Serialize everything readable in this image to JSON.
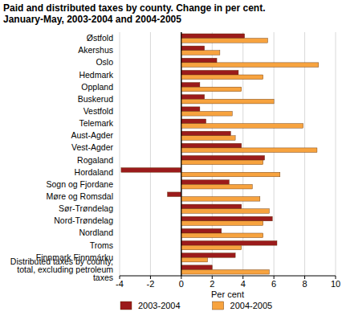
{
  "chart_data": {
    "type": "bar",
    "orientation": "horizontal",
    "title": "Paid and distributed taxes by county. Change in per cent. January-May, 2003-2004 and 2004-2005",
    "x_label": "Per cent",
    "categories": [
      "Østfold",
      "Akershus",
      "Oslo",
      "Hedmark",
      "Oppland",
      "Buskerud",
      "Vestfold",
      "Telemark",
      "Aust-Agder",
      "Vest-Agder",
      "Rogaland",
      "Hordaland",
      "Sogn og Fjordane",
      "Møre og Romsdal",
      "Sør-Trøndelag",
      "Nord-Trøndelag",
      "Nordland",
      "Troms",
      "Finnmark Finnmárku",
      "Distributed taxes by county, total, excluding petroleum taxes"
    ],
    "series": [
      {
        "name": "2003-2004",
        "color": "#9b1b1b",
        "values": [
          4.1,
          1.5,
          2.3,
          3.7,
          1.2,
          1.5,
          1.2,
          1.6,
          3.2,
          3.9,
          5.4,
          -3.9,
          3.1,
          -0.9,
          3.9,
          5.9,
          2.6,
          6.2,
          3.5,
          2.0
        ]
      },
      {
        "name": "2004-2005",
        "color": "#f7a33f",
        "values": [
          5.6,
          2.5,
          8.9,
          5.3,
          3.9,
          6.0,
          3.3,
          7.9,
          3.5,
          8.8,
          5.3,
          6.4,
          4.6,
          5.1,
          5.7,
          5.3,
          5.3,
          3.9,
          1.7,
          5.7
        ]
      }
    ],
    "xlim": [
      -4,
      10
    ],
    "xticks": [
      -4,
      -2,
      0,
      2,
      4,
      6,
      8,
      10
    ],
    "grid": true,
    "legend": "bottom"
  }
}
